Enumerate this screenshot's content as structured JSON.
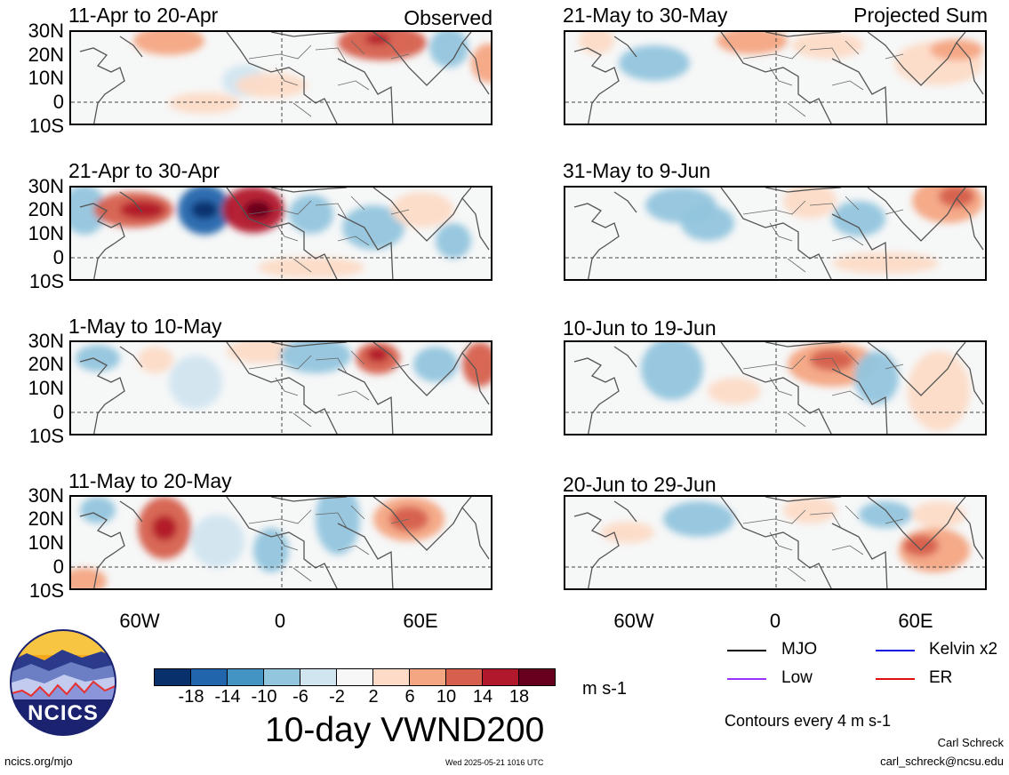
{
  "header": {
    "observed_label": "Observed",
    "projected_label": "Projected Sum"
  },
  "panels_left": [
    {
      "title": "11-Apr to 20-Apr"
    },
    {
      "title": "21-Apr to 30-Apr"
    },
    {
      "title": "1-May to 10-May"
    },
    {
      "title": "11-May to 20-May"
    }
  ],
  "panels_right": [
    {
      "title": "21-May to 30-May"
    },
    {
      "title": "31-May to 9-Jun"
    },
    {
      "title": "10-Jun to 19-Jun"
    },
    {
      "title": "20-Jun to 29-Jun"
    }
  ],
  "lat_labels": [
    "30N",
    "20N",
    "10N",
    "0",
    "10S"
  ],
  "lon_labels": [
    "60W",
    "0",
    "60E"
  ],
  "colorbar": {
    "ticks": [
      "-18",
      "-14",
      "-10",
      "-6",
      "-2",
      "2",
      "6",
      "10",
      "14",
      "18"
    ],
    "unit": "m s-1",
    "colors": [
      "#08306b",
      "#2166ac",
      "#4393c3",
      "#92c5de",
      "#d1e5f0",
      "#f7f7f7",
      "#fddbc7",
      "#f4a582",
      "#d6604d",
      "#b2182b",
      "#67001f"
    ]
  },
  "main_title": "10-day VWND200",
  "legend": [
    {
      "label": "MJO",
      "color": "#000000"
    },
    {
      "label": "Kelvin x2",
      "color": "#1010e0"
    },
    {
      "label": "Low",
      "color": "#9b30ff"
    },
    {
      "label": "ER",
      "color": "#e01010"
    }
  ],
  "contours_note": "Contours every 4 m s-1",
  "logo_text": "NCICS",
  "footer": {
    "url": "ncics.org/mjo",
    "timestamp": "Wed 2025-05-21 1016 UTC",
    "author": "Carl Schreck",
    "email": "carl_schreck@ncsu.edu"
  }
}
